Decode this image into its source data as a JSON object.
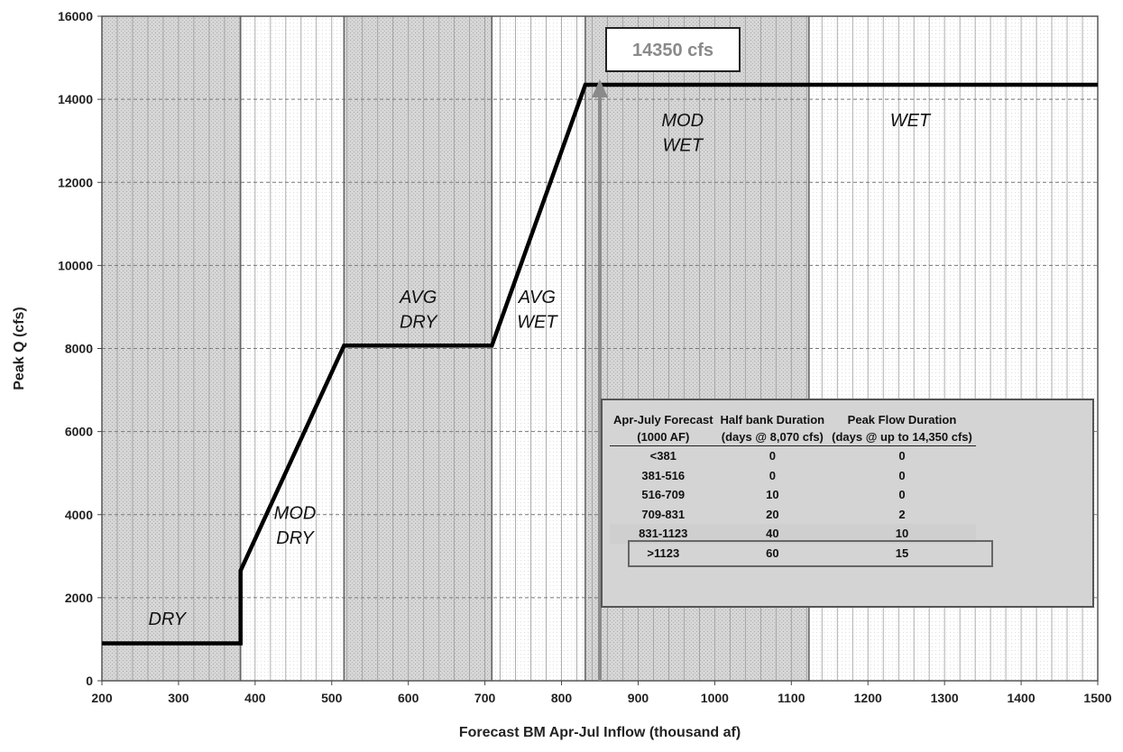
{
  "chart_data": {
    "type": "line",
    "title": "",
    "xlabel": "Forecast BM Apr-Jul Inflow (thousand af)",
    "ylabel": "Peak Q (cfs)",
    "xlim": [
      200,
      1500
    ],
    "ylim": [
      0,
      16000
    ],
    "x_ticks": [
      "200",
      "300",
      "400",
      "500",
      "600",
      "700",
      "800",
      "900",
      "1000",
      "1100",
      "1200",
      "1300",
      "1400",
      "1500"
    ],
    "y_ticks": [
      "0",
      "2000",
      "4000",
      "6000",
      "8000",
      "10000",
      "12000",
      "14000",
      "16000"
    ],
    "grid": "vertical minor every 20, horizontal dashed every 2000",
    "series": [
      {
        "values": [
          [
            200,
            900
          ],
          [
            381,
            900
          ],
          [
            381,
            2650
          ],
          [
            516,
            8070
          ],
          [
            709,
            8070
          ],
          [
            831,
            14350
          ],
          [
            1500,
            14350
          ]
        ]
      }
    ],
    "zones": [
      {
        "label": [
          "DRY"
        ],
        "x0": 200,
        "x1": 381,
        "shaded": true,
        "label_x": 285,
        "label_y": [
          1350
        ]
      },
      {
        "label": [
          "MOD",
          "DRY"
        ],
        "x0": 381,
        "x1": 516,
        "shaded": false,
        "label_x": 452,
        "label_y": [
          3900,
          3300
        ]
      },
      {
        "label": [
          "AVG",
          "DRY"
        ],
        "x0": 516,
        "x1": 709,
        "shaded": true,
        "label_x": 613,
        "label_y": [
          9100,
          8500
        ]
      },
      {
        "label": [
          "AVG",
          "WET"
        ],
        "x0": 709,
        "x1": 831,
        "shaded": false,
        "label_x": 768,
        "label_y": [
          9100,
          8500
        ]
      },
      {
        "label": [
          "MOD",
          "WET"
        ],
        "x0": 831,
        "x1": 1123,
        "shaded": true,
        "label_x": 958,
        "label_y": [
          13350,
          12750
        ]
      },
      {
        "label": [
          "WET"
        ],
        "x0": 1123,
        "x1": 1500,
        "shaded": false,
        "label_x": 1255,
        "label_y": [
          13350
        ]
      }
    ],
    "annotation": {
      "text": "14350 cfs",
      "x": 850,
      "y": 14350
    }
  },
  "table": {
    "headers": [
      [
        "Apr-July Forecast",
        "(1000 AF)"
      ],
      [
        "Half bank Duration",
        "(days @ 8,070 cfs)"
      ],
      [
        "Peak Flow Duration",
        "(days @ up to 14,350 cfs)"
      ]
    ],
    "rows": [
      [
        "<381",
        "0",
        "0"
      ],
      [
        "381-516",
        "0",
        "0"
      ],
      [
        "516-709",
        "10",
        "0"
      ],
      [
        "709-831",
        "20",
        "2"
      ],
      [
        "831-1123",
        "40",
        "10"
      ],
      [
        ">1123",
        "60",
        "15"
      ]
    ],
    "highlight_row": 4
  }
}
